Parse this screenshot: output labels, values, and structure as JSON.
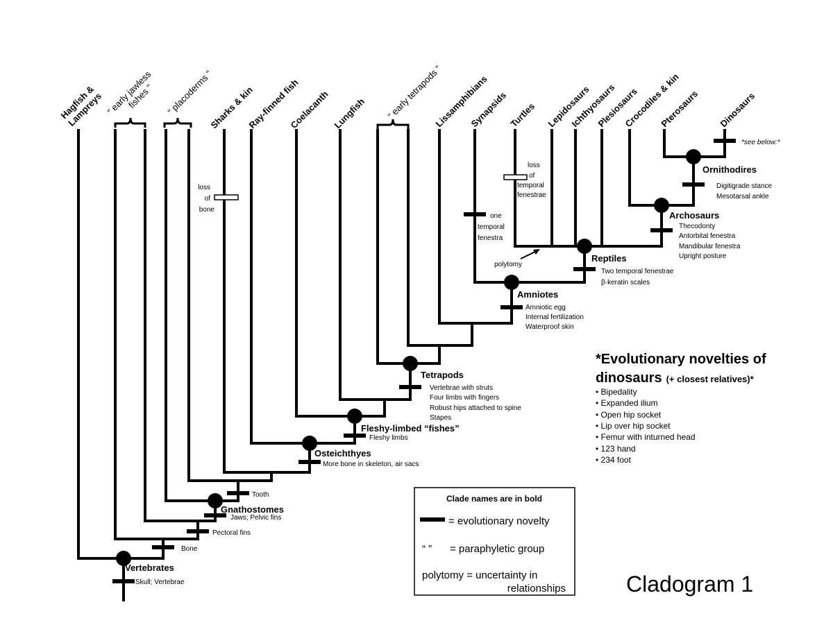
{
  "title": "Cladogram 1",
  "taxa": {
    "hagfish": [
      "Hagfish &",
      "Lampreys"
    ],
    "early_jawless": [
      "“ early jawless",
      "fishes ”"
    ],
    "placoderms": "“ placoderms ”",
    "sharks": "Sharks & kin",
    "ray_finned": "Ray-finned fish",
    "coelacanth": "Coelacanth",
    "lungfish": "Lungfish",
    "early_tetrapods": "“ early tetrapods ”",
    "lissamphibians": "Lissamphibians",
    "synapsids": "Synapsids",
    "turtles": "Turtles",
    "lepidosaurs": "Lepidosaurs",
    "ichthyosaurs": "Ichthyosaurs",
    "plesiosaurs": "Plesiosaurs",
    "crocodiles": "Crocodiles & kin",
    "pterosaurs": "Pterosaurs",
    "dinosaurs": "Dinosaurs"
  },
  "clades": {
    "vertebrates": {
      "name": "Vertebrates",
      "novelties": [
        "Skull; Vertebrae"
      ]
    },
    "bone": {
      "novelties": [
        "Bone"
      ]
    },
    "pectoral": {
      "novelties": [
        "Pectoral fins"
      ]
    },
    "gnathostomes": {
      "name": "Gnathostomes",
      "novelties": [
        "Jaws; Pelvic fins"
      ]
    },
    "tooth": {
      "novelties": [
        "Tooth"
      ]
    },
    "osteichthyes": {
      "name": "Osteichthyes",
      "novelties": [
        "More bone in skeleton, air sacs"
      ]
    },
    "fleshy": {
      "name": "Fleshy-limbed “fishes”",
      "novelties": [
        "Fleshy limbs"
      ]
    },
    "tetrapods": {
      "name": "Tetrapods",
      "novelties": [
        "Vertebrae with struts",
        "Four limbs with fingers",
        "Robust hips attached to spine",
        "Stapes"
      ]
    },
    "amniotes": {
      "name": "Amniotes",
      "novelties": [
        "Amniotic egg",
        "Internal fertilization",
        "Waterproof skin"
      ]
    },
    "reptiles": {
      "name": "Reptiles",
      "novelties": [
        "Two temporal fenestrae",
        "β-keratin scales"
      ]
    },
    "archosaurs": {
      "name": "Archosaurs",
      "novelties": [
        "Thecodonty",
        "Antorbital fenestra",
        "Mandibular fenestra",
        "Upright posture"
      ]
    },
    "ornithodires": {
      "name": "Ornithodires",
      "novelties": [
        "Digitigrade stance",
        "Mesotarsal ankle"
      ]
    },
    "dinosaurs": {
      "novelties": [
        "*see below:*"
      ]
    }
  },
  "notes": {
    "loss_of_bone": [
      "loss",
      "of",
      "bone"
    ],
    "loss_temporal": [
      "loss",
      "of",
      "temporal",
      "fenestrae"
    ],
    "one_temporal": [
      "one",
      "temporal",
      "fenestra"
    ],
    "polytomy": "polytomy"
  },
  "dino_novelties": {
    "title_line1": "*Evolutionary novelties of",
    "title_line2": "dinosaurs",
    "title_suffix": "(+ closest relatives)*",
    "items": [
      "• Bipedality",
      "• Expanded ilium",
      "• Open hip socket",
      "• Lip over hip socket",
      "• Femur with inturned head",
      "• 123 hand",
      "• 234 foot"
    ]
  },
  "legend": {
    "heading": "Clade names are in bold",
    "novelty": "= evolutionary novelty",
    "quotes_symbol": "“   ”",
    "paraphyletic": "= paraphyletic group",
    "polytomy_line1": "polytomy = uncertainty in",
    "polytomy_line2": "relationships"
  }
}
